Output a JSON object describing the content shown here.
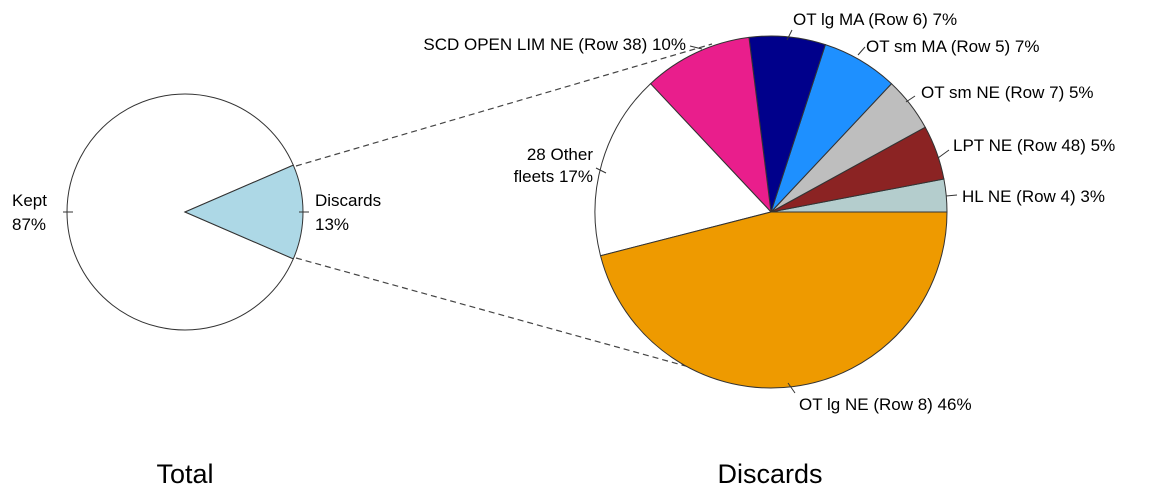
{
  "chart_data": [
    {
      "type": "pie",
      "title": "Total",
      "slices": [
        {
          "label": "Kept",
          "percent_label": "87%",
          "value": 87,
          "color": "#FFFFFF"
        },
        {
          "label": "Discards",
          "percent_label": "13%",
          "value": 13,
          "color": "#ADD8E6"
        }
      ]
    },
    {
      "type": "pie",
      "title": "Discards",
      "slices": [
        {
          "label": "HL NE (Row 4) 3%",
          "value": 3,
          "color": "#B4CDCD"
        },
        {
          "label": "LPT NE (Row 48) 5%",
          "value": 5,
          "color": "#8B2323"
        },
        {
          "label": "OT sm NE (Row 7) 5%",
          "value": 5,
          "color": "#BEBEBE"
        },
        {
          "label": "OT sm MA (Row 5) 7%",
          "value": 7,
          "color": "#1E90FF"
        },
        {
          "label": "OT lg MA (Row 6) 7%",
          "value": 7,
          "color": "#00008B"
        },
        {
          "label": "SCD OPEN LIM NE (Row 38) 10%",
          "value": 10,
          "color": "#E91E8C"
        },
        {
          "label": "28 Other fleets 17%",
          "value": 17,
          "color": "#FFFFFF"
        },
        {
          "label": "OT lg NE (Row 8) 46%",
          "value": 46,
          "color": "#EE9A00"
        }
      ]
    }
  ]
}
